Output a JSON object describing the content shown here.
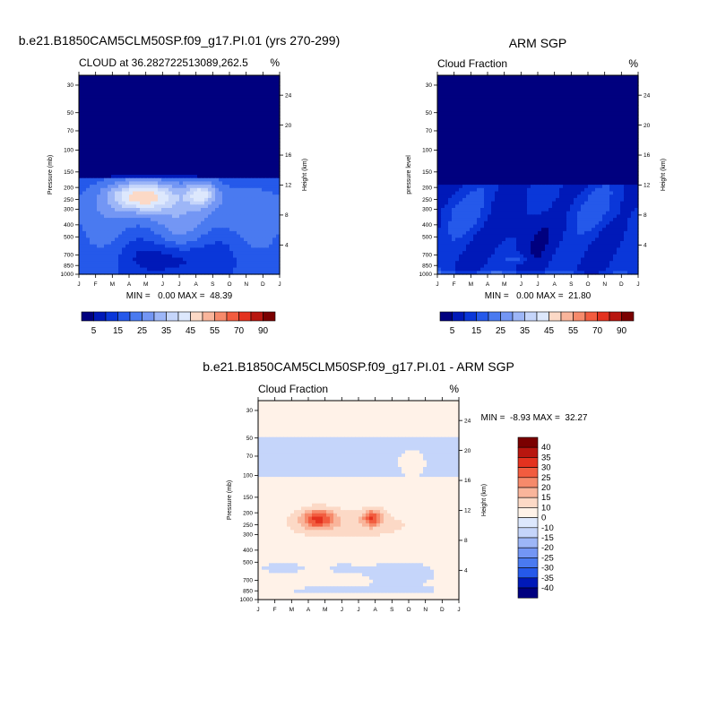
{
  "palette": {
    "diverging": [
      "#00007f",
      "#0019b8",
      "#0a37d9",
      "#2559ea",
      "#4a7af0",
      "#7396f4",
      "#9db6f7",
      "#c5d5fa",
      "#dde8fd",
      "#fff2e8",
      "#fcd9c6",
      "#f9b59b",
      "#f68a6b",
      "#f25c3f",
      "#e4321f",
      "#b8160f",
      "#7a0000"
    ],
    "plot_bg": "#ffffff"
  },
  "months": [
    "J",
    "F",
    "M",
    "A",
    "M",
    "J",
    "J",
    "A",
    "S",
    "O",
    "N",
    "D",
    "J"
  ],
  "panels": [
    {
      "id": "model",
      "figure_title": "b.e21.B1850CAM5CLM50SP.f09_g17.PI.01 (yrs 270-299)",
      "left_label": "CLOUD at 36.282722513089,262.5",
      "right_label": "%",
      "y_label": "Pressure (mb)",
      "y2_label": "Height (km)",
      "stats": "MIN =   0.00 MAX =  48.39"
    },
    {
      "id": "obs",
      "figure_title": "ARM SGP",
      "left_label": "Cloud Fraction",
      "right_label": "%",
      "y_label": "pressure level",
      "y2_label": "Height (km)",
      "stats": "MIN =   0.00 MAX =  21.80"
    },
    {
      "id": "diff",
      "figure_title": "b.e21.B1850CAM5CLM50SP.f09_g17.PI.01 - ARM SGP",
      "left_label": "Cloud Fraction",
      "right_label": "%",
      "y_label": "Pressure (mb)",
      "y2_label": "Height (km)",
      "stats": "MIN =  -8.93 MAX =  32.27"
    }
  ],
  "chart_data": [
    {
      "type": "heatmap",
      "title": "b.e21.B1850CAM5CLM50SP.f09_g17.PI.01 (yrs 270-299)",
      "subtitle": "CLOUD at 36.282722513089,262.5",
      "units": "%",
      "xlabel": "",
      "ylabel": "Pressure (mb)",
      "y2label": "Height (km)",
      "x": [
        "J",
        "F",
        "M",
        "A",
        "M",
        "J",
        "J",
        "A",
        "S",
        "O",
        "N",
        "D",
        "J"
      ],
      "y_ticks": [
        30,
        50,
        70,
        100,
        150,
        200,
        250,
        300,
        400,
        500,
        700,
        850,
        1000
      ],
      "y2_ticks": [
        24,
        20,
        16,
        12,
        8,
        4
      ],
      "ylim": [
        1000,
        25
      ],
      "min": 0.0,
      "max": 48.39,
      "levels": [
        5,
        10,
        15,
        20,
        25,
        30,
        35,
        40,
        45,
        50,
        55,
        60,
        70,
        80,
        90
      ],
      "colorbar_labels": [
        "5",
        "15",
        "25",
        "35",
        "45",
        "55",
        "70",
        "90"
      ]
    },
    {
      "type": "heatmap",
      "title": "ARM SGP",
      "subtitle": "Cloud Fraction",
      "units": "%",
      "xlabel": "",
      "ylabel": "pressure level",
      "y2label": "Height (km)",
      "x": [
        "J",
        "F",
        "M",
        "A",
        "M",
        "J",
        "J",
        "A",
        "S",
        "O",
        "N",
        "D",
        "J"
      ],
      "y_ticks": [
        30,
        50,
        70,
        100,
        150,
        200,
        250,
        300,
        400,
        500,
        700,
        850,
        1000
      ],
      "y2_ticks": [
        24,
        20,
        16,
        12,
        8,
        4
      ],
      "ylim": [
        1000,
        25
      ],
      "min": 0.0,
      "max": 21.8,
      "levels": [
        5,
        10,
        15,
        20,
        25,
        30,
        35,
        40,
        45,
        50,
        55,
        60,
        70,
        80,
        90
      ],
      "colorbar_labels": [
        "5",
        "15",
        "25",
        "35",
        "45",
        "55",
        "70",
        "90"
      ]
    },
    {
      "type": "heatmap",
      "title": "b.e21.B1850CAM5CLM50SP.f09_g17.PI.01 - ARM SGP",
      "subtitle": "Cloud Fraction",
      "units": "%",
      "xlabel": "",
      "ylabel": "Pressure (mb)",
      "y2label": "Height (km)",
      "x": [
        "J",
        "F",
        "M",
        "A",
        "M",
        "J",
        "J",
        "A",
        "S",
        "O",
        "N",
        "D",
        "J"
      ],
      "y_ticks": [
        30,
        50,
        70,
        100,
        150,
        200,
        250,
        300,
        400,
        500,
        700,
        850,
        1000
      ],
      "y2_ticks": [
        24,
        20,
        16,
        12,
        8,
        4
      ],
      "ylim": [
        1000,
        25
      ],
      "min": -8.93,
      "max": 32.27,
      "levels": [
        -40,
        -35,
        -30,
        -25,
        -20,
        -15,
        -10,
        0,
        10,
        15,
        20,
        25,
        30,
        35,
        40
      ],
      "colorbar_labels": [
        "40",
        "35",
        "30",
        "25",
        "20",
        "15",
        "10",
        "0",
        "-10",
        "-15",
        "-20",
        "-25",
        "-30",
        "-35",
        "-40"
      ]
    }
  ]
}
